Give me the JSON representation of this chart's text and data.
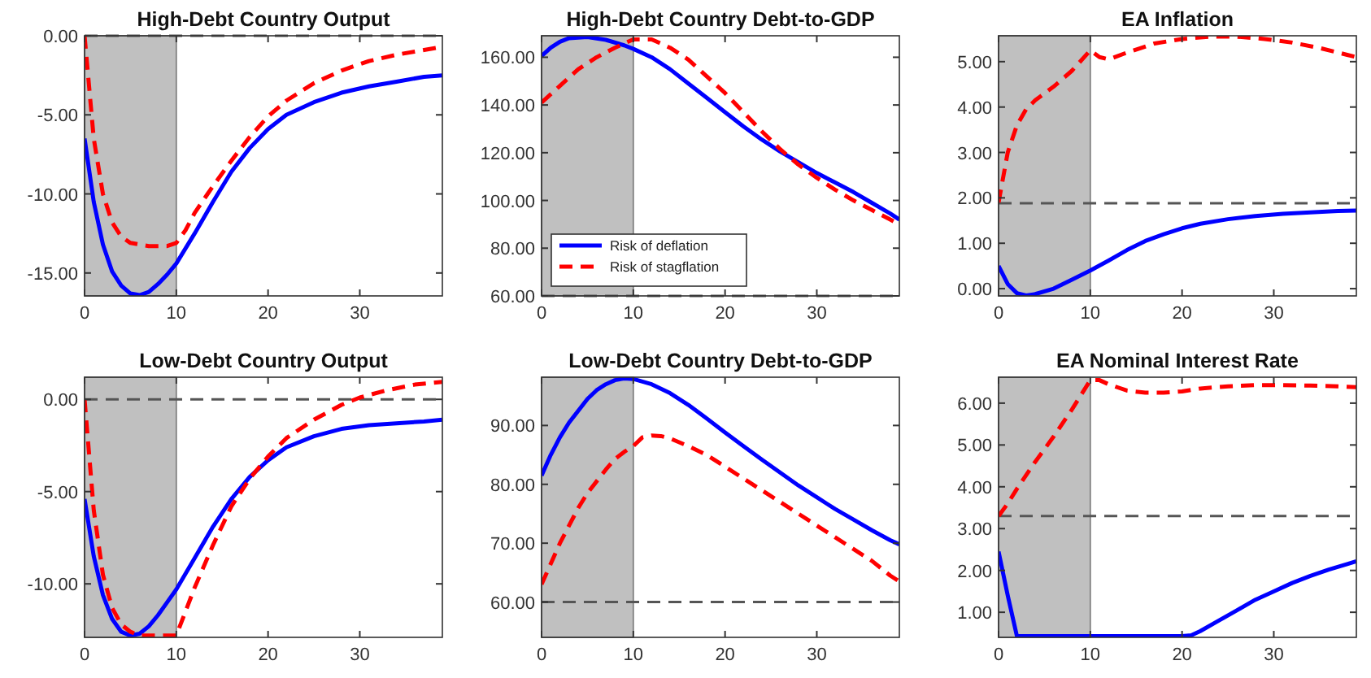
{
  "chart_data": [
    {
      "type": "line",
      "title": "High-Debt Country Output",
      "xlim": [
        0,
        39
      ],
      "xticks": [
        0,
        10,
        20,
        30
      ],
      "ylim": [
        -16.45,
        0
      ],
      "yticks": [
        {
          "value": -15,
          "label": "-15.00"
        },
        {
          "value": -10,
          "label": "-10.00"
        },
        {
          "value": -5,
          "label": "-5.00"
        },
        {
          "value": 0,
          "label": "0.00"
        }
      ],
      "grid": false,
      "bands": [
        {
          "axis": "x",
          "from": 0,
          "to": 10,
          "color": "#c0c0c0"
        }
      ],
      "ref_lines": [
        {
          "axis": "y",
          "value": 0,
          "color": "#555555",
          "line_style": "dashed"
        }
      ],
      "series": [
        {
          "color": "#0000ff",
          "line_style": "solid",
          "x": [
            0,
            1,
            2,
            3,
            4,
            5,
            6,
            7,
            8,
            9,
            10,
            12,
            14,
            16,
            18,
            20,
            22,
            25,
            28,
            31,
            34,
            37,
            39
          ],
          "values": [
            -6.5,
            -10.5,
            -13.2,
            -14.9,
            -15.8,
            -16.3,
            -16.4,
            -16.2,
            -15.7,
            -15.1,
            -14.4,
            -12.5,
            -10.5,
            -8.6,
            -7.1,
            -5.9,
            -5.0,
            -4.2,
            -3.6,
            -3.2,
            -2.9,
            -2.6,
            -2.5
          ]
        },
        {
          "color": "#ff0000",
          "line_style": "dashed",
          "x": [
            0,
            1,
            2,
            3,
            4,
            5,
            6,
            7,
            8,
            9,
            10,
            11,
            12,
            14,
            16,
            18,
            20,
            22,
            25,
            28,
            31,
            34,
            37,
            39
          ],
          "values": [
            0,
            -6.5,
            -10,
            -11.8,
            -12.7,
            -13.1,
            -13.2,
            -13.3,
            -13.3,
            -13.3,
            -13.1,
            -12.3,
            -11.2,
            -9.5,
            -7.9,
            -6.4,
            -5.1,
            -4.1,
            -3.0,
            -2.2,
            -1.6,
            -1.2,
            -0.9,
            -0.7
          ]
        }
      ]
    },
    {
      "type": "line",
      "title": "High-Debt Country Debt-to-GDP",
      "xlim": [
        0,
        39
      ],
      "xticks": [
        0,
        10,
        20,
        30
      ],
      "ylim": [
        60,
        169
      ],
      "yticks": [
        {
          "value": 60,
          "label": "60.00"
        },
        {
          "value": 80,
          "label": "80.00"
        },
        {
          "value": 100,
          "label": "100.00"
        },
        {
          "value": 120,
          "label": "120.00"
        },
        {
          "value": 140,
          "label": "140.00"
        },
        {
          "value": 160,
          "label": "160.00"
        }
      ],
      "grid": false,
      "legend": "bottom left",
      "bands": [
        {
          "axis": "x",
          "from": 0,
          "to": 10,
          "color": "#c0c0c0"
        }
      ],
      "ref_lines": [
        {
          "axis": "y",
          "value": 60,
          "color": "#555555",
          "line_style": "dashed"
        }
      ],
      "series": [
        {
          "name": "Risk of deflation",
          "color": "#0000ff",
          "line_style": "solid",
          "x": [
            0,
            1,
            2,
            3,
            5,
            7,
            9,
            10,
            12,
            14,
            16,
            18,
            20,
            22,
            24,
            26,
            28,
            30,
            32,
            34,
            36,
            38,
            39
          ],
          "values": [
            160.5,
            164,
            166.5,
            168,
            168.5,
            167.3,
            165,
            163.5,
            160,
            155,
            149,
            143,
            137,
            131,
            125.5,
            120.5,
            116,
            111.5,
            107.5,
            103.5,
            99,
            94.5,
            92
          ]
        },
        {
          "name": "Risk of stagflation",
          "color": "#ff0000",
          "line_style": "dashed",
          "x": [
            0,
            2,
            4,
            6,
            8,
            10,
            12,
            14,
            16,
            18,
            20,
            22,
            24,
            26,
            28,
            30,
            32,
            34,
            36,
            38,
            39
          ],
          "values": [
            141,
            148,
            155,
            160,
            164,
            167.5,
            167.5,
            164,
            159,
            152,
            145,
            137,
            129,
            121.5,
            115,
            109.5,
            104.5,
            100,
            96,
            92,
            90
          ]
        }
      ]
    },
    {
      "type": "line",
      "title": "EA  Inflation",
      "xlim": [
        0,
        39
      ],
      "xticks": [
        0,
        10,
        20,
        30
      ],
      "ylim": [
        -0.16,
        5.57
      ],
      "yticks": [
        {
          "value": 0,
          "label": "0.00"
        },
        {
          "value": 1,
          "label": "1.00"
        },
        {
          "value": 2,
          "label": "2.00"
        },
        {
          "value": 3,
          "label": "3.00"
        },
        {
          "value": 4,
          "label": "4.00"
        },
        {
          "value": 5,
          "label": "5.00"
        }
      ],
      "grid": false,
      "bands": [
        {
          "axis": "x",
          "from": 0,
          "to": 10,
          "color": "#c0c0c0"
        }
      ],
      "ref_lines": [
        {
          "axis": "y",
          "value": 1.88,
          "color": "#555555",
          "line_style": "dashed"
        }
      ],
      "series": [
        {
          "color": "#0000ff",
          "line_style": "solid",
          "x": [
            0,
            1,
            2,
            3,
            4,
            6,
            8,
            10,
            12,
            14,
            16,
            18,
            20,
            22,
            25,
            28,
            31,
            34,
            37,
            39
          ],
          "values": [
            0.5,
            0.1,
            -0.1,
            -0.15,
            -0.12,
            0.0,
            0.2,
            0.4,
            0.62,
            0.85,
            1.05,
            1.2,
            1.33,
            1.43,
            1.53,
            1.6,
            1.65,
            1.68,
            1.71,
            1.72
          ]
        },
        {
          "color": "#ff0000",
          "line_style": "dashed",
          "x": [
            0,
            1,
            2,
            3,
            4,
            6,
            8,
            10,
            11,
            12,
            14,
            17,
            20,
            23,
            26,
            29,
            32,
            35,
            38,
            39
          ],
          "values": [
            1.9,
            3.0,
            3.6,
            3.95,
            4.15,
            4.45,
            4.8,
            5.25,
            5.1,
            5.05,
            5.2,
            5.4,
            5.5,
            5.55,
            5.55,
            5.5,
            5.42,
            5.3,
            5.15,
            5.1
          ]
        }
      ]
    },
    {
      "type": "line",
      "title": "Low-Debt Country Output",
      "xlim": [
        0,
        39
      ],
      "xticks": [
        0,
        10,
        20,
        30
      ],
      "ylim": [
        -12.9,
        1.2
      ],
      "yticks": [
        {
          "value": -10,
          "label": "-10.00"
        },
        {
          "value": -5,
          "label": "-5.00"
        },
        {
          "value": 0,
          "label": "0.00"
        }
      ],
      "grid": false,
      "bands": [
        {
          "axis": "x",
          "from": 0,
          "to": 10,
          "color": "#c0c0c0"
        }
      ],
      "ref_lines": [
        {
          "axis": "y",
          "value": 0,
          "color": "#555555",
          "line_style": "dashed"
        }
      ],
      "series": [
        {
          "color": "#0000ff",
          "line_style": "solid",
          "x": [
            0,
            1,
            2,
            3,
            4,
            5,
            6,
            7,
            8,
            9,
            10,
            12,
            14,
            16,
            18,
            20,
            22,
            25,
            28,
            31,
            34,
            37,
            39
          ],
          "values": [
            -5.4,
            -8.5,
            -10.6,
            -11.9,
            -12.6,
            -12.8,
            -12.7,
            -12.3,
            -11.7,
            -11.0,
            -10.3,
            -8.6,
            -6.9,
            -5.4,
            -4.2,
            -3.3,
            -2.6,
            -2.0,
            -1.6,
            -1.4,
            -1.3,
            -1.2,
            -1.1
          ]
        },
        {
          "color": "#ff0000",
          "line_style": "dashed",
          "x": [
            0,
            1,
            2,
            3,
            4,
            5,
            6,
            8,
            10,
            11,
            12,
            14,
            16,
            18,
            20,
            22,
            25,
            28,
            30,
            33,
            36,
            39
          ],
          "values": [
            0,
            -6,
            -9.5,
            -11.3,
            -12.2,
            -12.6,
            -12.8,
            -12.8,
            -12.8,
            -11.5,
            -10.2,
            -7.9,
            -5.8,
            -4.3,
            -3.1,
            -2.1,
            -1.1,
            -0.3,
            0.1,
            0.5,
            0.8,
            0.95
          ]
        }
      ]
    },
    {
      "type": "line",
      "title": "Low-Debt Country Debt-to-GDP",
      "xlim": [
        0,
        39
      ],
      "xticks": [
        0,
        10,
        20,
        30
      ],
      "ylim": [
        54,
        98.2
      ],
      "yticks": [
        {
          "value": 60,
          "label": "60.00"
        },
        {
          "value": 70,
          "label": "70.00"
        },
        {
          "value": 80,
          "label": "80.00"
        },
        {
          "value": 90,
          "label": "90.00"
        }
      ],
      "grid": false,
      "bands": [
        {
          "axis": "x",
          "from": 0,
          "to": 10,
          "color": "#c0c0c0"
        }
      ],
      "ref_lines": [
        {
          "axis": "y",
          "value": 60,
          "color": "#555555",
          "line_style": "dashed"
        }
      ],
      "series": [
        {
          "color": "#0000ff",
          "line_style": "solid",
          "x": [
            0,
            1,
            2,
            3,
            4,
            5,
            6,
            7,
            8,
            9,
            10,
            12,
            14,
            16,
            18,
            20,
            22,
            24,
            26,
            28,
            30,
            32,
            34,
            36,
            38,
            39
          ],
          "values": [
            81.5,
            85,
            88,
            90.5,
            92.5,
            94.5,
            96,
            97,
            97.7,
            98,
            97.9,
            97,
            95.5,
            93.5,
            91.2,
            88.8,
            86.5,
            84.2,
            82,
            79.8,
            77.8,
            75.8,
            74,
            72.2,
            70.5,
            69.8
          ]
        },
        {
          "color": "#ff0000",
          "line_style": "dashed",
          "x": [
            0,
            1,
            2,
            3,
            4,
            5,
            6,
            7,
            8,
            9,
            10,
            11,
            12,
            13,
            14,
            16,
            18,
            20,
            22,
            24,
            26,
            28,
            30,
            32,
            34,
            36,
            38,
            39
          ],
          "values": [
            63,
            66.5,
            70,
            73,
            76,
            78.5,
            80.5,
            82.5,
            84.3,
            85.5,
            86.5,
            88,
            88.3,
            88.2,
            87.8,
            86.5,
            85,
            83,
            81,
            79,
            77,
            75,
            73,
            71,
            69,
            67,
            64.5,
            63.5
          ]
        }
      ]
    },
    {
      "type": "line",
      "title": "EA Nominal Interest Rate",
      "xlim": [
        0,
        39
      ],
      "xticks": [
        0,
        10,
        20,
        30
      ],
      "ylim": [
        0.4,
        6.62
      ],
      "yticks": [
        {
          "value": 1,
          "label": "1.00"
        },
        {
          "value": 2,
          "label": "2.00"
        },
        {
          "value": 3,
          "label": "3.00"
        },
        {
          "value": 4,
          "label": "4.00"
        },
        {
          "value": 5,
          "label": "5.00"
        },
        {
          "value": 6,
          "label": "6.00"
        }
      ],
      "grid": false,
      "bands": [
        {
          "axis": "x",
          "from": 0,
          "to": 10,
          "color": "#c0c0c0"
        }
      ],
      "ref_lines": [
        {
          "axis": "y",
          "value": 3.3,
          "color": "#555555",
          "line_style": "dashed"
        }
      ],
      "series": [
        {
          "color": "#0000ff",
          "line_style": "solid",
          "x": [
            0,
            1,
            2,
            4,
            8,
            12,
            16,
            20,
            21,
            22,
            24,
            26,
            28,
            30,
            32,
            34,
            36,
            38,
            39
          ],
          "values": [
            2.45,
            1.4,
            0.43,
            0.43,
            0.43,
            0.43,
            0.43,
            0.43,
            0.45,
            0.55,
            0.8,
            1.05,
            1.3,
            1.5,
            1.7,
            1.87,
            2.02,
            2.15,
            2.22
          ]
        },
        {
          "color": "#ff0000",
          "line_style": "dashed",
          "x": [
            0,
            1,
            2,
            4,
            6,
            8,
            10,
            11,
            12,
            14,
            16,
            18,
            20,
            22,
            25,
            28,
            31,
            34,
            37,
            39
          ],
          "values": [
            3.3,
            3.6,
            3.95,
            4.6,
            5.2,
            5.85,
            6.55,
            6.55,
            6.45,
            6.3,
            6.25,
            6.25,
            6.28,
            6.35,
            6.4,
            6.43,
            6.43,
            6.42,
            6.4,
            6.38
          ]
        }
      ]
    }
  ]
}
